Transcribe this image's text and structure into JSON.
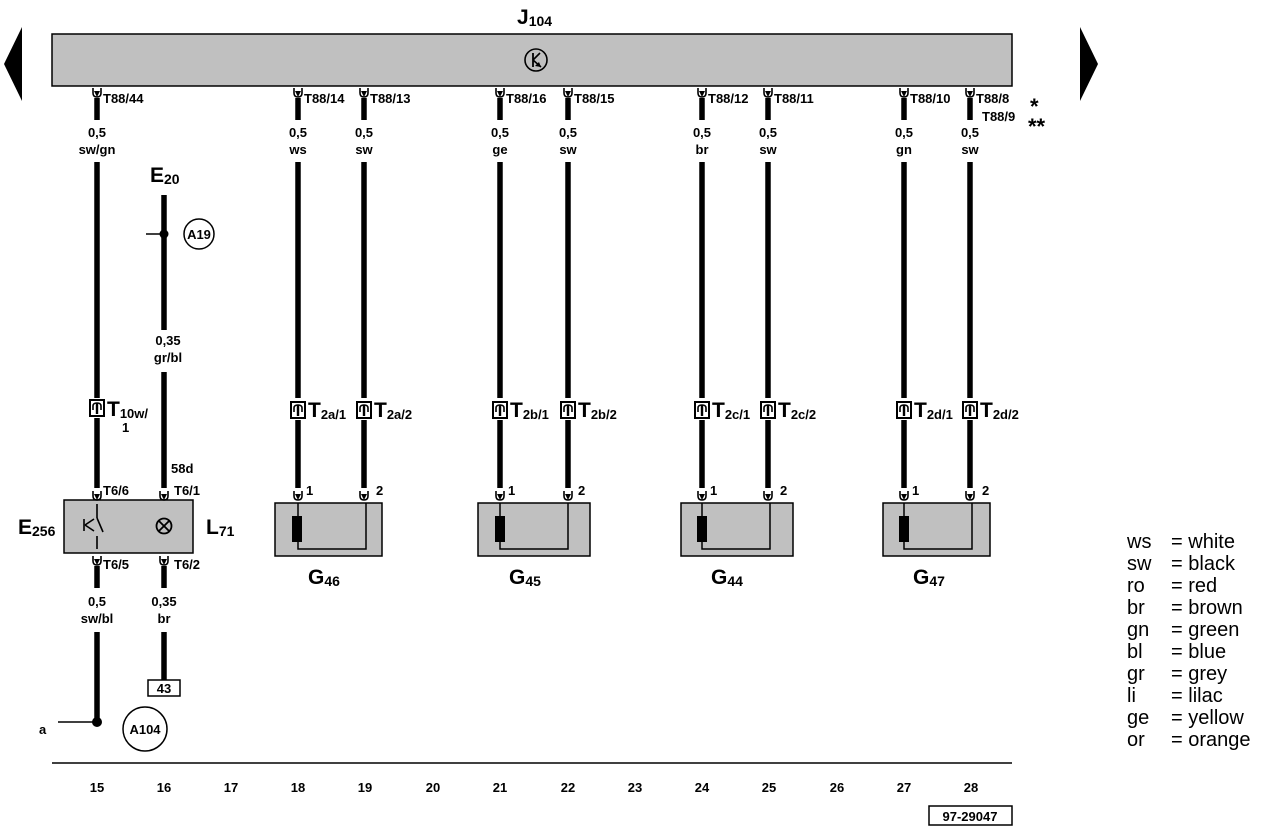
{
  "nav": {
    "prev_icon": "triangle-left-icon",
    "next_icon": "triangle-right-icon"
  },
  "j104": {
    "name": "J",
    "sub": "104",
    "symbol": "transistor-icon"
  },
  "pins_top": [
    "T88/44",
    "T88/14",
    "T88/13",
    "T88/16",
    "T88/15",
    "T88/12",
    "T88/11",
    "T88/10",
    "T88/8"
  ],
  "pin_alt": "T88/9",
  "mark_star": "*",
  "mark_dstar": "**",
  "wires_top": [
    {
      "size": "0,5",
      "color": "sw/gn"
    },
    {
      "size": "0,5",
      "color": "ws"
    },
    {
      "size": "0,5",
      "color": "sw"
    },
    {
      "size": "0,5",
      "color": "ge"
    },
    {
      "size": "0,5",
      "color": "sw"
    },
    {
      "size": "0,5",
      "color": "br"
    },
    {
      "size": "0,5",
      "color": "sw"
    },
    {
      "size": "0,5",
      "color": "gn"
    },
    {
      "size": "0,5",
      "color": "sw"
    }
  ],
  "e20": {
    "name": "E",
    "sub": "20"
  },
  "a19": "A19",
  "wire_e20": {
    "size": "0,35",
    "color": "gr/bl"
  },
  "t10w": {
    "name": "T",
    "sub1": "10w/",
    "sub2": "1"
  },
  "connectors": [
    {
      "name": "T",
      "sub": "2a/1"
    },
    {
      "name": "T",
      "sub": "2a/2"
    },
    {
      "name": "T",
      "sub": "2b/1"
    },
    {
      "name": "T",
      "sub": "2b/2"
    },
    {
      "name": "T",
      "sub": "2c/1"
    },
    {
      "name": "T",
      "sub": "2c/2"
    },
    {
      "name": "T",
      "sub": "2d/1"
    },
    {
      "name": "T",
      "sub": "2d/2"
    }
  ],
  "term_58d": "58d",
  "switch_pins": {
    "t66": "T6/6",
    "t61": "T6/1",
    "t65": "T6/5",
    "t62": "T6/2"
  },
  "e256": {
    "name": "E",
    "sub": "256"
  },
  "l71": {
    "name": "L",
    "sub": "71"
  },
  "sensor_pins": [
    "1",
    "2"
  ],
  "sensors": [
    {
      "name": "G",
      "sub": "46"
    },
    {
      "name": "G",
      "sub": "45"
    },
    {
      "name": "G",
      "sub": "44"
    },
    {
      "name": "G",
      "sub": "47"
    }
  ],
  "wires_bottom": [
    {
      "size": "0,5",
      "color": "sw/bl"
    },
    {
      "size": "0,35",
      "color": "br"
    }
  ],
  "ref_43": "43",
  "a104": "A104",
  "label_a": "a",
  "columns": [
    "15",
    "16",
    "17",
    "18",
    "19",
    "20",
    "21",
    "22",
    "23",
    "24",
    "25",
    "26",
    "27",
    "28"
  ],
  "doc_number": "97-29047",
  "legend": [
    {
      "code": "ws",
      "name": "white"
    },
    {
      "code": "sw",
      "name": "black"
    },
    {
      "code": "ro",
      "name": "red"
    },
    {
      "code": "br",
      "name": "brown"
    },
    {
      "code": "gn",
      "name": "green"
    },
    {
      "code": "bl",
      "name": "blue"
    },
    {
      "code": "gr",
      "name": "grey"
    },
    {
      "code": "li",
      "name": "lilac"
    },
    {
      "code": "ge",
      "name": "yellow"
    },
    {
      "code": "or",
      "name": "orange"
    }
  ],
  "colors": {
    "component_fill": "#c0c0c0",
    "wire": "#000000"
  }
}
